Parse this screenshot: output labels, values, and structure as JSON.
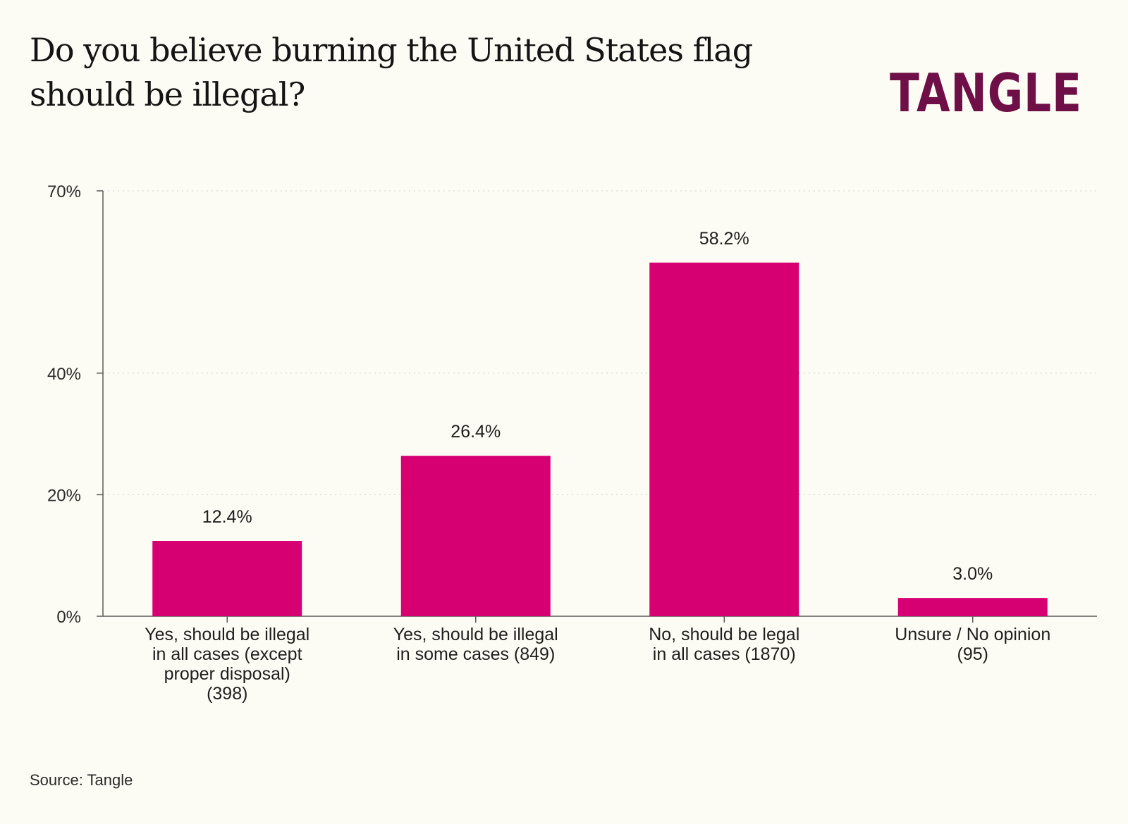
{
  "header": {
    "title": "Do you believe burning the United States flag should be illegal?",
    "logo_text": "TANGLE"
  },
  "footer": {
    "source": "Source: Tangle"
  },
  "colors": {
    "bar": "#d60073",
    "logo": "#6e0f48",
    "axis": "#5a5a5a",
    "grid": "#d4d4cc",
    "background": "#fdfcf4"
  },
  "chart_data": {
    "type": "bar",
    "title": "Do you believe burning the United States flag should be illegal?",
    "xlabel": "",
    "ylabel": "",
    "ylim": [
      0,
      70
    ],
    "yticks": [
      0,
      20,
      40,
      70
    ],
    "ytick_labels": [
      "0%",
      "20%",
      "40%",
      "70%"
    ],
    "grid": true,
    "categories": [
      [
        "Yes, should be illegal",
        "in all cases (except",
        "proper disposal)",
        "(398)"
      ],
      [
        "Yes, should be illegal",
        "in some cases (849)"
      ],
      [
        "No, should be legal",
        "in all cases (1870)"
      ],
      [
        "Unsure / No opinion",
        "(95)"
      ]
    ],
    "values": [
      12.4,
      26.4,
      58.2,
      3.0
    ],
    "value_labels": [
      "12.4%",
      "26.4%",
      "58.2%",
      "3.0%"
    ]
  }
}
